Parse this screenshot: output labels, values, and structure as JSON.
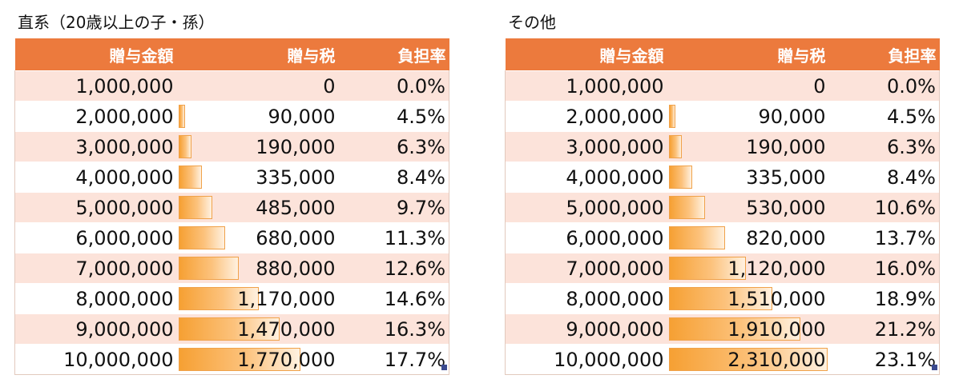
{
  "tables": [
    {
      "title": "直系（20歳以上の子・孫）",
      "headers": [
        "贈与金額",
        "贈与税",
        "負担率"
      ],
      "rows": [
        {
          "amount": "1,000,000",
          "tax": "0",
          "rate": "0.0%",
          "tax_value": 0
        },
        {
          "amount": "2,000,000",
          "tax": "90,000",
          "rate": "4.5%",
          "tax_value": 90000
        },
        {
          "amount": "3,000,000",
          "tax": "190,000",
          "rate": "6.3%",
          "tax_value": 190000
        },
        {
          "amount": "4,000,000",
          "tax": "335,000",
          "rate": "8.4%",
          "tax_value": 335000
        },
        {
          "amount": "5,000,000",
          "tax": "485,000",
          "rate": "9.7%",
          "tax_value": 485000
        },
        {
          "amount": "6,000,000",
          "tax": "680,000",
          "rate": "11.3%",
          "tax_value": 680000
        },
        {
          "amount": "7,000,000",
          "tax": "880,000",
          "rate": "12.6%",
          "tax_value": 880000
        },
        {
          "amount": "8,000,000",
          "tax": "1,170,000",
          "rate": "14.6%",
          "tax_value": 1170000
        },
        {
          "amount": "9,000,000",
          "tax": "1,470,000",
          "rate": "16.3%",
          "tax_value": 1470000
        },
        {
          "amount": "10,000,000",
          "tax": "1,770,000",
          "rate": "17.7%",
          "tax_value": 1770000
        }
      ]
    },
    {
      "title": "その他",
      "headers": [
        "贈与金額",
        "贈与税",
        "負担率"
      ],
      "rows": [
        {
          "amount": "1,000,000",
          "tax": "0",
          "rate": "0.0%",
          "tax_value": 0
        },
        {
          "amount": "2,000,000",
          "tax": "90,000",
          "rate": "4.5%",
          "tax_value": 90000
        },
        {
          "amount": "3,000,000",
          "tax": "190,000",
          "rate": "6.3%",
          "tax_value": 190000
        },
        {
          "amount": "4,000,000",
          "tax": "335,000",
          "rate": "8.4%",
          "tax_value": 335000
        },
        {
          "amount": "5,000,000",
          "tax": "530,000",
          "rate": "10.6%",
          "tax_value": 530000
        },
        {
          "amount": "6,000,000",
          "tax": "820,000",
          "rate": "13.7%",
          "tax_value": 820000
        },
        {
          "amount": "7,000,000",
          "tax": "1,120,000",
          "rate": "16.0%",
          "tax_value": 1120000
        },
        {
          "amount": "8,000,000",
          "tax": "1,510,000",
          "rate": "18.9%",
          "tax_value": 1510000
        },
        {
          "amount": "9,000,000",
          "tax": "1,910,000",
          "rate": "21.2%",
          "tax_value": 1910000
        },
        {
          "amount": "10,000,000",
          "tax": "2,310,000",
          "rate": "23.1%",
          "tax_value": 2310000
        }
      ]
    }
  ],
  "colors": {
    "header_bg": "#ec7a3d",
    "band_bg": "#fce3da",
    "bar_fill": "#f6a033",
    "selection_handle": "#3b4a8f"
  }
}
